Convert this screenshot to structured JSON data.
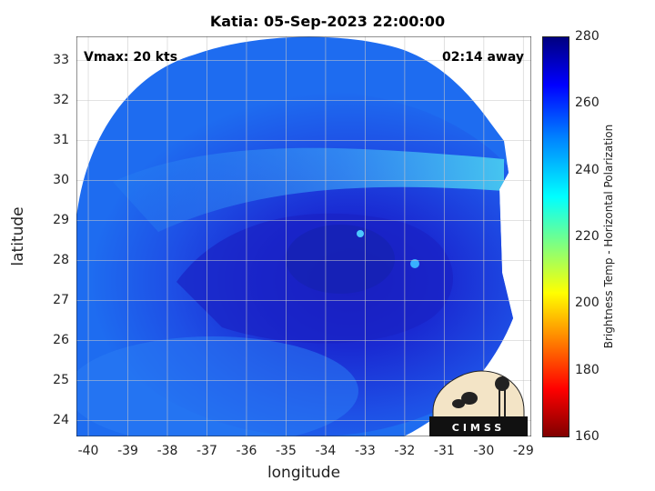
{
  "title": "Katia: 05-Sep-2023 22:00:00",
  "annotations": {
    "vmax": "Vmax: 20 kts",
    "time_away": "02:14 away"
  },
  "axes": {
    "xlabel": "longitude",
    "ylabel": "latitude",
    "xlim": [
      -40.3,
      -28.8
    ],
    "ylim": [
      23.6,
      33.6
    ],
    "xticks": [
      "-40",
      "-39",
      "-38",
      "-37",
      "-36",
      "-35",
      "-34",
      "-33",
      "-32",
      "-31",
      "-30",
      "-29"
    ],
    "yticks": [
      "24",
      "25",
      "26",
      "27",
      "28",
      "29",
      "30",
      "31",
      "32",
      "33"
    ],
    "grid": true
  },
  "colorbar": {
    "label": "Brightness Temp - Horizontal Polarization",
    "range": [
      160,
      280
    ],
    "ticks": [
      "160",
      "180",
      "200",
      "220",
      "240",
      "260",
      "280"
    ],
    "colormap": [
      "#7f0000",
      "#ff0000",
      "#ffff00",
      "#00ffff",
      "#0080ff",
      "#0000ff",
      "#00007f"
    ]
  },
  "map": {
    "center_lon": -34.0,
    "center_lat": 28.6,
    "background_color": "#1e6cf0",
    "core_color": "#1020c0"
  },
  "logo": {
    "text": "CIMSS"
  }
}
